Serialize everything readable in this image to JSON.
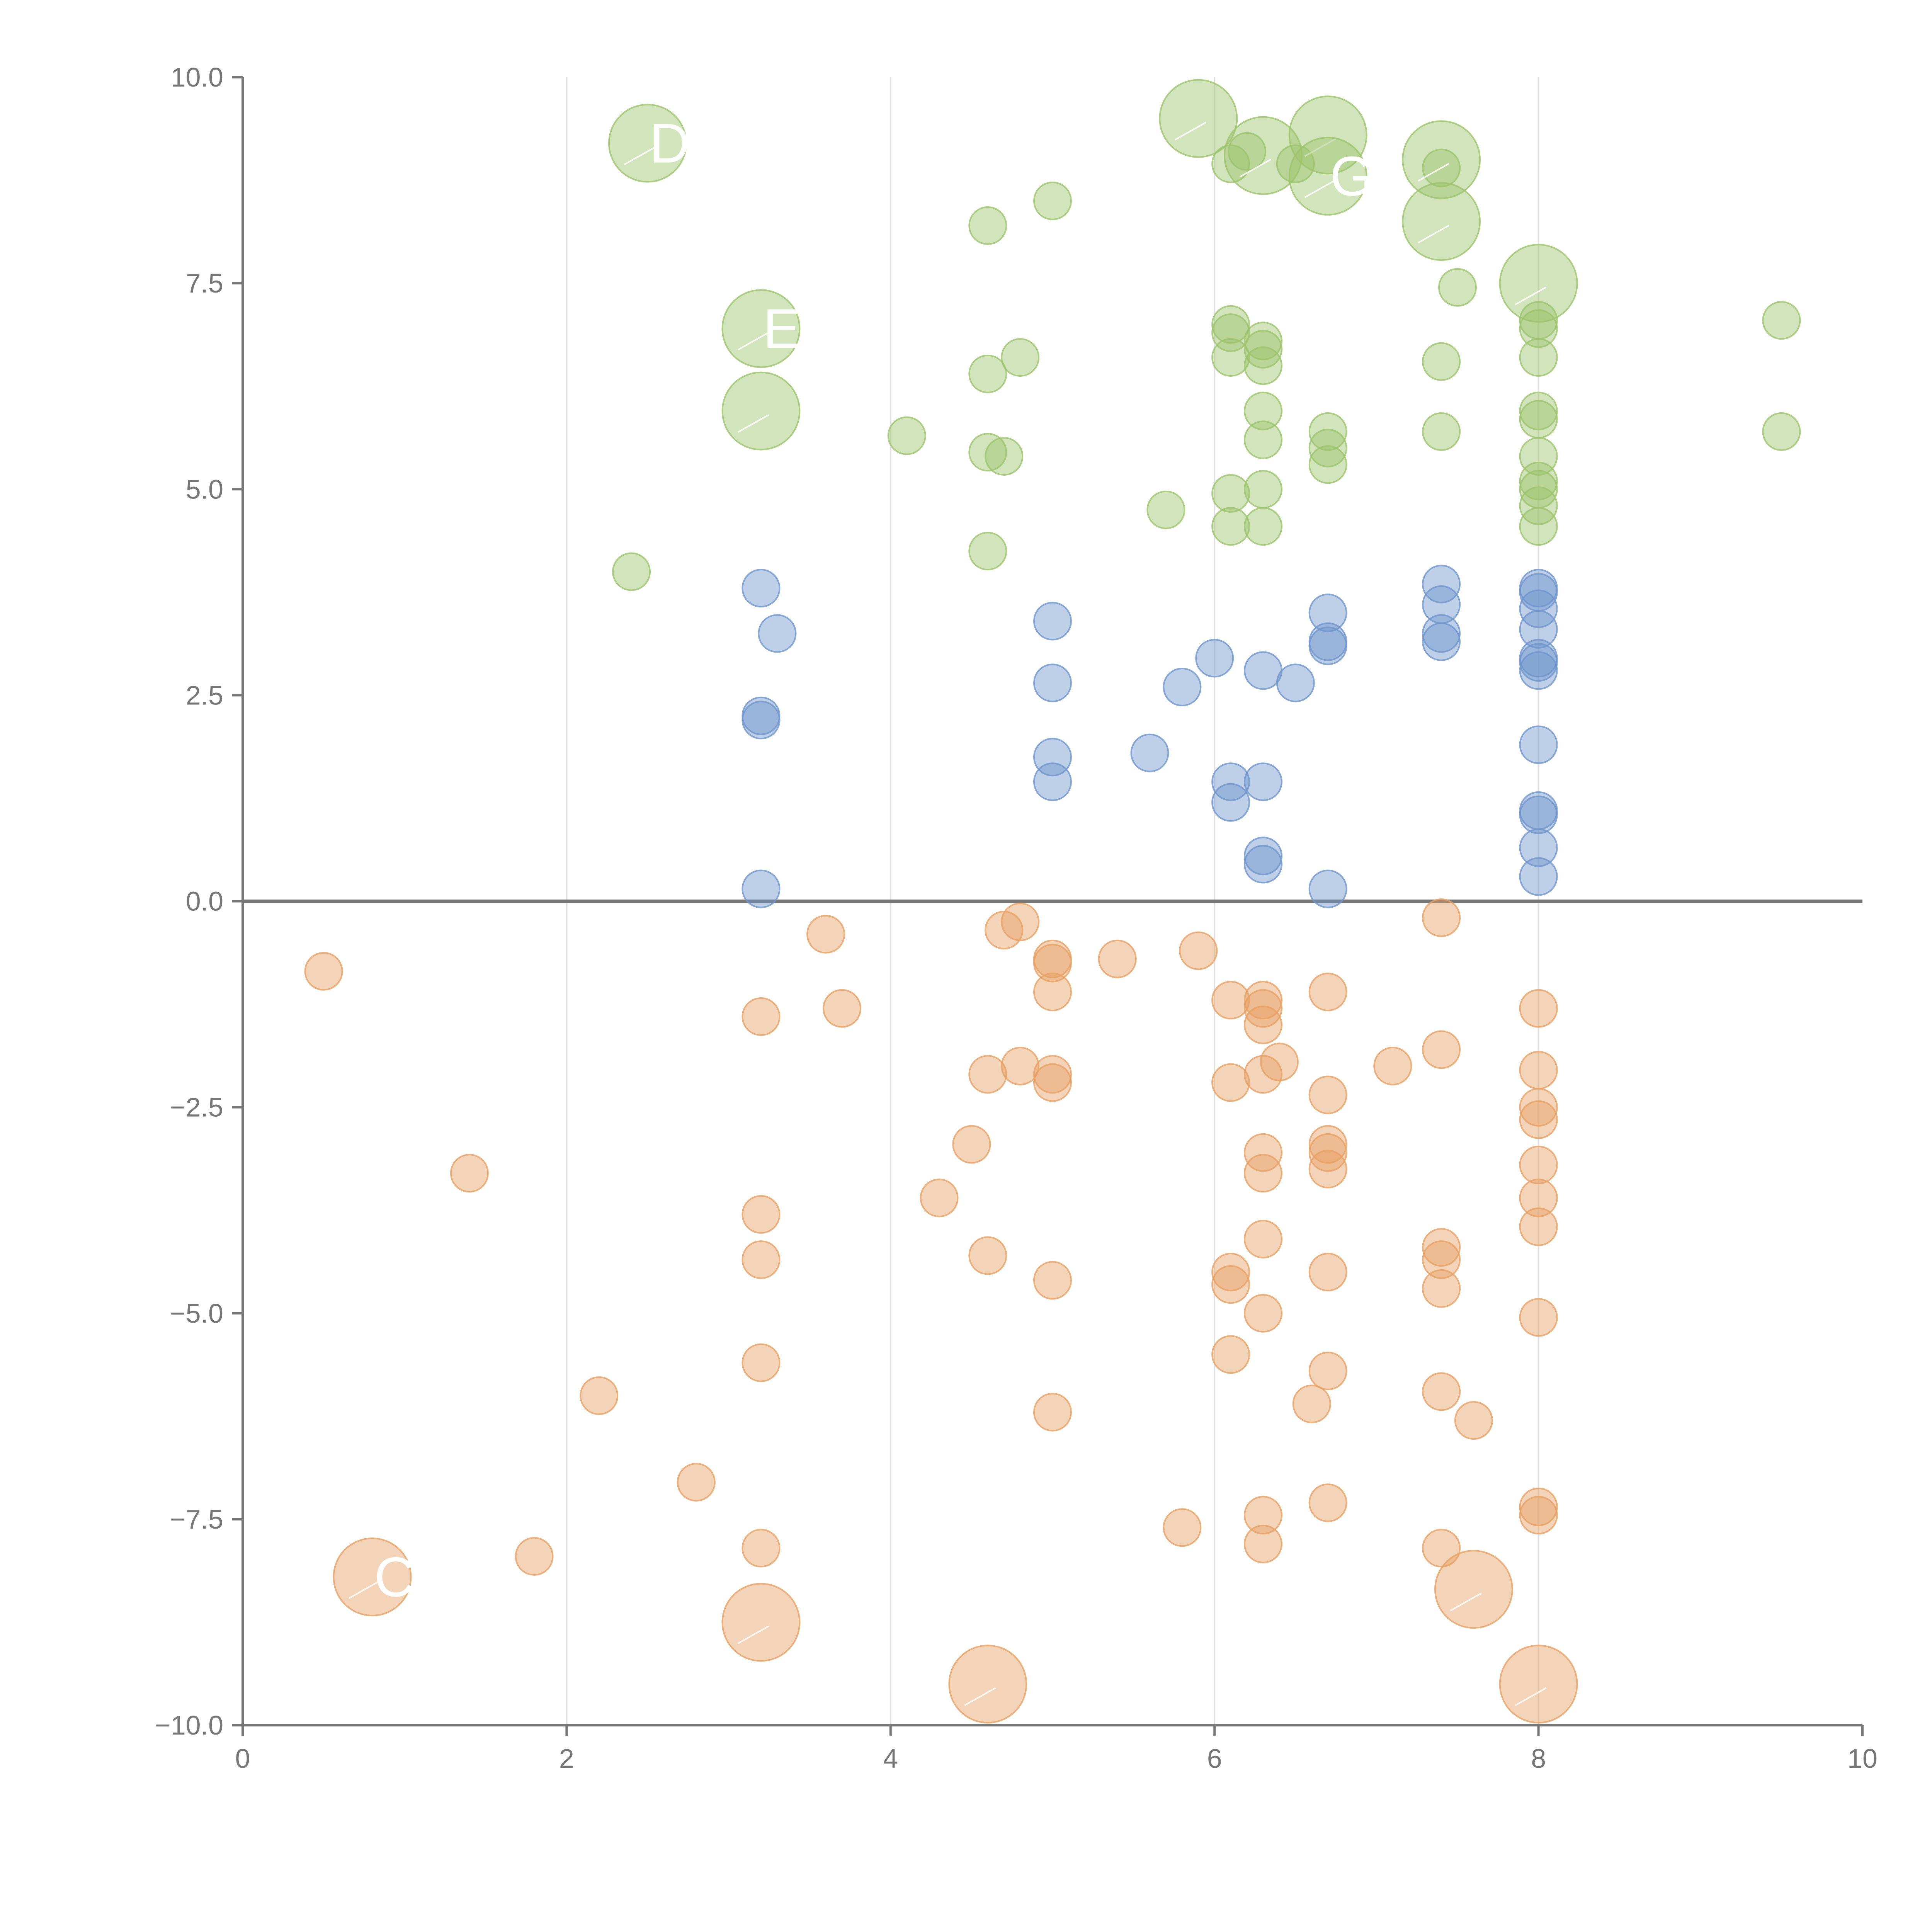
{
  "chart_data": {
    "type": "scatter",
    "title": "",
    "xlabel": "",
    "ylabel": "",
    "xlim": [
      0,
      10
    ],
    "ylim": [
      -10,
      10
    ],
    "x_ticks": [
      "0",
      "2",
      "4",
      "6",
      "8",
      "10"
    ],
    "y_ticks": [
      "10.0",
      "7.5",
      "5.0",
      "2.5",
      "0.0",
      "−2.5",
      "−5.0",
      "−7.5",
      "−10.0"
    ],
    "grid": "vertical",
    "zero_line": true,
    "legend": "none",
    "colors": {
      "green": "#9cc36b",
      "blue": "#6f95cc",
      "orange": "#e7a063",
      "axis": "#777777",
      "grid": "#e0e0e0",
      "label": "#ffffff"
    },
    "series": [
      {
        "color_key": "green",
        "points": [
          [
            2.4,
            4.0
          ],
          [
            4.1,
            5.65
          ],
          [
            4.6,
            4.25
          ],
          [
            4.6,
            5.45
          ],
          [
            4.7,
            5.4
          ],
          [
            4.6,
            6.4
          ],
          [
            4.8,
            6.6
          ],
          [
            4.6,
            8.2
          ],
          [
            5.0,
            8.5
          ],
          [
            5.7,
            4.75
          ],
          [
            6.1,
            4.55
          ],
          [
            6.1,
            4.95
          ],
          [
            6.3,
            4.55
          ],
          [
            6.3,
            5.0
          ],
          [
            6.3,
            5.6
          ],
          [
            6.3,
            5.95
          ],
          [
            6.1,
            6.6
          ],
          [
            6.1,
            6.9
          ],
          [
            6.1,
            7.0
          ],
          [
            6.3,
            6.5
          ],
          [
            6.3,
            6.7
          ],
          [
            6.3,
            6.8
          ],
          [
            6.7,
            5.3
          ],
          [
            6.7,
            5.5
          ],
          [
            6.7,
            5.7
          ],
          [
            6.1,
            8.95
          ],
          [
            6.2,
            9.1
          ],
          [
            6.5,
            8.95
          ],
          [
            7.4,
            5.7
          ],
          [
            7.4,
            6.55
          ],
          [
            7.5,
            7.45
          ],
          [
            7.4,
            8.9
          ],
          [
            8.0,
            4.55
          ],
          [
            8.0,
            4.8
          ],
          [
            8.0,
            5.0
          ],
          [
            8.0,
            5.1
          ],
          [
            8.0,
            5.4
          ],
          [
            8.0,
            5.85
          ],
          [
            8.0,
            5.95
          ],
          [
            8.0,
            6.6
          ],
          [
            8.0,
            6.95
          ],
          [
            8.0,
            7.05
          ],
          [
            9.5,
            5.7
          ],
          [
            9.5,
            7.05
          ]
        ]
      },
      {
        "color_key": "blue",
        "points": [
          [
            3.2,
            0.15
          ],
          [
            3.2,
            2.2
          ],
          [
            3.2,
            2.25
          ],
          [
            3.3,
            3.25
          ],
          [
            3.2,
            3.8
          ],
          [
            5.0,
            1.45
          ],
          [
            5.0,
            1.75
          ],
          [
            5.0,
            2.65
          ],
          [
            5.0,
            3.4
          ],
          [
            5.6,
            1.8
          ],
          [
            5.8,
            2.6
          ],
          [
            6.0,
            2.95
          ],
          [
            6.1,
            1.2
          ],
          [
            6.1,
            1.45
          ],
          [
            6.3,
            0.45
          ],
          [
            6.3,
            0.55
          ],
          [
            6.3,
            1.45
          ],
          [
            6.3,
            2.8
          ],
          [
            6.5,
            2.65
          ],
          [
            6.7,
            0.15
          ],
          [
            6.7,
            3.1
          ],
          [
            6.7,
            3.15
          ],
          [
            6.7,
            3.5
          ],
          [
            7.4,
            3.15
          ],
          [
            7.4,
            3.25
          ],
          [
            7.4,
            3.6
          ],
          [
            7.4,
            3.85
          ],
          [
            8.0,
            0.3
          ],
          [
            8.0,
            0.65
          ],
          [
            8.0,
            1.05
          ],
          [
            8.0,
            1.1
          ],
          [
            8.0,
            1.9
          ],
          [
            8.0,
            2.8
          ],
          [
            8.0,
            2.9
          ],
          [
            8.0,
            2.95
          ],
          [
            8.0,
            3.3
          ],
          [
            8.0,
            3.55
          ],
          [
            8.0,
            3.75
          ],
          [
            8.0,
            3.8
          ]
        ]
      },
      {
        "color_key": "orange",
        "points": [
          [
            0.5,
            -0.85
          ],
          [
            1.4,
            -3.3
          ],
          [
            1.8,
            -7.95
          ],
          [
            2.2,
            -6.0
          ],
          [
            2.8,
            -7.05
          ],
          [
            3.2,
            -1.4
          ],
          [
            3.2,
            -3.8
          ],
          [
            3.2,
            -4.35
          ],
          [
            3.2,
            -5.6
          ],
          [
            3.2,
            -7.85
          ],
          [
            3.6,
            -0.4
          ],
          [
            3.7,
            -1.3
          ],
          [
            4.3,
            -3.6
          ],
          [
            4.5,
            -2.95
          ],
          [
            4.6,
            -2.1
          ],
          [
            4.6,
            -4.3
          ],
          [
            4.7,
            -0.35
          ],
          [
            4.8,
            -2.0
          ],
          [
            4.8,
            -0.25
          ],
          [
            5.0,
            -0.7
          ],
          [
            5.0,
            -0.75
          ],
          [
            5.0,
            -1.1
          ],
          [
            5.0,
            -2.1
          ],
          [
            5.0,
            -2.2
          ],
          [
            5.0,
            -4.6
          ],
          [
            5.0,
            -6.2
          ],
          [
            5.4,
            -0.7
          ],
          [
            5.9,
            -0.6
          ],
          [
            5.8,
            -7.6
          ],
          [
            6.1,
            -1.2
          ],
          [
            6.1,
            -2.2
          ],
          [
            6.1,
            -4.5
          ],
          [
            6.1,
            -4.65
          ],
          [
            6.1,
            -5.5
          ],
          [
            6.3,
            -1.2
          ],
          [
            6.3,
            -1.3
          ],
          [
            6.3,
            -1.5
          ],
          [
            6.3,
            -2.1
          ],
          [
            6.4,
            -1.95
          ],
          [
            6.3,
            -3.05
          ],
          [
            6.3,
            -3.3
          ],
          [
            6.3,
            -4.1
          ],
          [
            6.3,
            -5.0
          ],
          [
            6.3,
            -7.45
          ],
          [
            6.3,
            -7.8
          ],
          [
            6.6,
            -6.1
          ],
          [
            6.7,
            -1.1
          ],
          [
            6.7,
            -2.35
          ],
          [
            6.7,
            -2.95
          ],
          [
            6.7,
            -3.05
          ],
          [
            6.7,
            -3.25
          ],
          [
            6.7,
            -4.5
          ],
          [
            6.7,
            -5.7
          ],
          [
            6.7,
            -7.3
          ],
          [
            7.1,
            -2.0
          ],
          [
            7.4,
            -0.2
          ],
          [
            7.4,
            -1.8
          ],
          [
            7.4,
            -4.2
          ],
          [
            7.4,
            -4.35
          ],
          [
            7.4,
            -4.7
          ],
          [
            7.4,
            -5.95
          ],
          [
            7.4,
            -7.85
          ],
          [
            7.6,
            -6.3
          ],
          [
            8.0,
            -1.3
          ],
          [
            8.0,
            -2.05
          ],
          [
            8.0,
            -2.5
          ],
          [
            8.0,
            -2.65
          ],
          [
            8.0,
            -3.2
          ],
          [
            8.0,
            -3.6
          ],
          [
            8.0,
            -3.95
          ],
          [
            8.0,
            -5.05
          ],
          [
            8.0,
            -7.35
          ],
          [
            8.0,
            -7.45
          ]
        ]
      }
    ],
    "labeled_bubbles": [
      {
        "color_key": "green",
        "x": 2.5,
        "y": 9.2,
        "size": "large",
        "label": "D"
      },
      {
        "color_key": "green",
        "x": 3.2,
        "y": 6.95,
        "size": "large",
        "label": "E"
      },
      {
        "color_key": "green",
        "x": 3.2,
        "y": 5.95,
        "size": "large",
        "label": ""
      },
      {
        "color_key": "green",
        "x": 5.9,
        "y": 9.5,
        "size": "large",
        "label": ""
      },
      {
        "color_key": "green",
        "x": 6.3,
        "y": 9.05,
        "size": "large",
        "label": ""
      },
      {
        "color_key": "green",
        "x": 6.7,
        "y": 9.3,
        "size": "large",
        "label": ""
      },
      {
        "color_key": "green",
        "x": 6.7,
        "y": 8.8,
        "size": "large",
        "label": "G"
      },
      {
        "color_key": "green",
        "x": 7.4,
        "y": 9.0,
        "size": "large",
        "label": ""
      },
      {
        "color_key": "green",
        "x": 7.4,
        "y": 8.25,
        "size": "large",
        "label": ""
      },
      {
        "color_key": "green",
        "x": 8.0,
        "y": 7.5,
        "size": "large",
        "label": ""
      },
      {
        "color_key": "orange",
        "x": 0.8,
        "y": -8.2,
        "size": "large",
        "label": "C"
      },
      {
        "color_key": "orange",
        "x": 3.2,
        "y": -8.75,
        "size": "large",
        "label": ""
      },
      {
        "color_key": "orange",
        "x": 4.6,
        "y": -9.5,
        "size": "large",
        "label": ""
      },
      {
        "color_key": "orange",
        "x": 7.6,
        "y": -8.35,
        "size": "large",
        "label": ""
      },
      {
        "color_key": "orange",
        "x": 8.0,
        "y": -9.5,
        "size": "large",
        "label": ""
      }
    ]
  }
}
